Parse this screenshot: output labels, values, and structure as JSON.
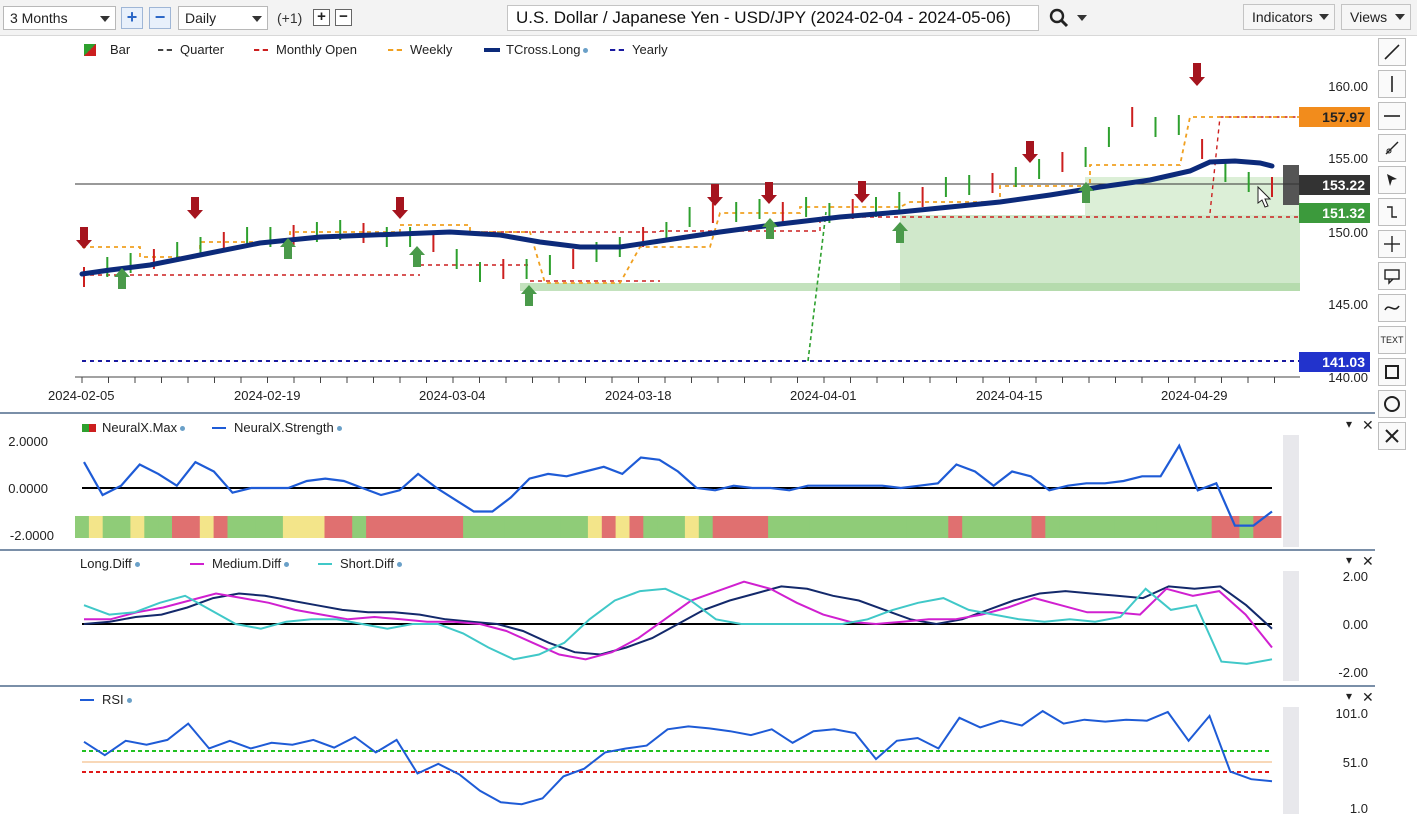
{
  "toolbar": {
    "period": "3 Months",
    "interval": "Daily",
    "offset": "(+1)",
    "title": "U.S. Dollar / Japanese Yen - USD/JPY (2024-02-04 - 2024-05-06)",
    "indicators_label": "Indicators",
    "views_label": "Views"
  },
  "main": {
    "legend": [
      "Bar",
      "Quarter",
      "Monthly Open",
      "Weekly",
      "TCross.Long",
      "Yearly"
    ],
    "price_labels": [
      "160.00",
      "155.00",
      "150.00",
      "145.00",
      "140.00"
    ],
    "date_labels": [
      "2024-02-05",
      "2024-02-19",
      "2024-03-04",
      "2024-03-18",
      "2024-04-01",
      "2024-04-15",
      "2024-04-29"
    ],
    "tags": {
      "weekly": "157.97",
      "last": "153.22",
      "quarter": "151.32",
      "yearly": "141.03"
    },
    "colors": {
      "up": "#2ea02e",
      "down": "#cc1f1f",
      "tcross": "#0c2a7a",
      "weekly": "#f0a020",
      "yearly": "#1a1aa0"
    }
  },
  "neuralx": {
    "legend": [
      "NeuralX.Max",
      "NeuralX.Strength"
    ],
    "scale": [
      "2.0000",
      "0.0000",
      "-2.0000"
    ],
    "strength": [
      1.1,
      -0.3,
      0.1,
      1.0,
      0.6,
      0.1,
      1.1,
      0.7,
      -0.2,
      0.0,
      0.0,
      0.0,
      0.3,
      0.4,
      0.3,
      0.0,
      -0.3,
      -0.1,
      0.6,
      0.0,
      -0.5,
      -1.0,
      -1.0,
      -0.4,
      0.4,
      0.6,
      0.5,
      0.7,
      0.9,
      0.6,
      1.3,
      1.2,
      0.7,
      0.0,
      -0.1,
      0.1,
      0.0,
      0.0,
      -0.1,
      0.1,
      0.1,
      0.1,
      0.1,
      0.1,
      0.0,
      0.1,
      0.2,
      1.0,
      0.7,
      0.1,
      0.7,
      0.5,
      -0.1,
      0.1,
      0.2,
      0.2,
      0.3,
      0.5,
      0.5,
      1.8,
      -0.1,
      0.2,
      -1.6,
      -1.6,
      -1.0
    ],
    "bars": [
      "g",
      "y",
      "g",
      "g",
      "y",
      "g",
      "g",
      "r",
      "r",
      "y",
      "r",
      "g",
      "g",
      "g",
      "g",
      "y",
      "y",
      "y",
      "r",
      "r",
      "g",
      "r",
      "r",
      "r",
      "r",
      "r",
      "r",
      "r",
      "g",
      "g",
      "g",
      "g",
      "g",
      "g",
      "g",
      "g",
      "g",
      "y",
      "r",
      "y",
      "r",
      "g",
      "g",
      "g",
      "y",
      "g",
      "r",
      "r",
      "r",
      "r",
      "g",
      "g",
      "g",
      "g",
      "g",
      "g",
      "g",
      "g",
      "g",
      "g",
      "g",
      "g",
      "g",
      "r",
      "g",
      "g",
      "g",
      "g",
      "g",
      "r",
      "g",
      "g",
      "g",
      "g",
      "g",
      "g",
      "g",
      "g",
      "g",
      "g",
      "g",
      "g",
      "r",
      "r",
      "g",
      "r",
      "r"
    ]
  },
  "diff": {
    "legend": [
      "Long.Diff",
      "Medium.Diff",
      "Short.Diff"
    ],
    "scale": [
      "2.00",
      "0.00",
      "-2.00"
    ],
    "long": [
      0.0,
      0.1,
      0.3,
      0.4,
      0.7,
      1.1,
      1.3,
      1.2,
      1.0,
      0.8,
      0.6,
      0.5,
      0.5,
      0.4,
      0.2,
      0.1,
      0.0,
      -0.3,
      -0.8,
      -1.2,
      -1.3,
      -1.0,
      -0.6,
      0.0,
      0.6,
      1.0,
      1.3,
      1.6,
      1.5,
      1.2,
      1.0,
      0.6,
      0.2,
      0.0,
      0.2,
      0.6,
      1.0,
      1.3,
      1.4,
      1.3,
      1.2,
      1.1,
      1.6,
      1.5,
      1.6,
      0.8,
      -0.2
    ],
    "medium": [
      0.2,
      0.2,
      0.5,
      0.7,
      1.0,
      1.3,
      1.1,
      0.9,
      0.6,
      0.4,
      0.2,
      0.3,
      0.2,
      0.1,
      0.1,
      0.0,
      -0.3,
      -0.8,
      -1.3,
      -1.5,
      -1.2,
      -0.6,
      0.2,
      1.0,
      1.4,
      1.8,
      1.5,
      0.9,
      0.4,
      0.1,
      0.0,
      0.1,
      0.2,
      0.2,
      0.4,
      0.7,
      1.1,
      0.8,
      0.5,
      0.5,
      0.4,
      1.5,
      1.2,
      1.4,
      0.4,
      -1.0
    ],
    "short": [
      0.8,
      0.4,
      0.5,
      0.9,
      1.2,
      0.6,
      0.0,
      -0.2,
      0.1,
      0.2,
      0.2,
      0.0,
      -0.2,
      0.0,
      0.0,
      -0.4,
      -1.0,
      -1.5,
      -1.3,
      -0.8,
      0.2,
      1.0,
      1.4,
      1.5,
      1.0,
      0.2,
      0.0,
      0.0,
      0.0,
      0.0,
      0.0,
      0.2,
      0.6,
      0.9,
      1.1,
      0.6,
      0.4,
      0.2,
      0.1,
      0.2,
      0.1,
      0.3,
      1.5,
      0.6,
      0.8,
      -1.6,
      -1.7,
      -1.5
    ]
  },
  "rsi": {
    "legend": [
      "RSI"
    ],
    "scale": [
      "101.0",
      "51.0",
      "1.0"
    ],
    "values": [
      71,
      57,
      72,
      68,
      73,
      90,
      64,
      72,
      64,
      70,
      68,
      73,
      65,
      76,
      60,
      73,
      38,
      48,
      37,
      20,
      8,
      6,
      12,
      35,
      43,
      60,
      64,
      67,
      84,
      87,
      85,
      82,
      78,
      84,
      70,
      82,
      84,
      80,
      53,
      72,
      75,
      64,
      96,
      86,
      93,
      88,
      103,
      90,
      94,
      92,
      94,
      93,
      102,
      72,
      98,
      40,
      32,
      30
    ]
  }
}
